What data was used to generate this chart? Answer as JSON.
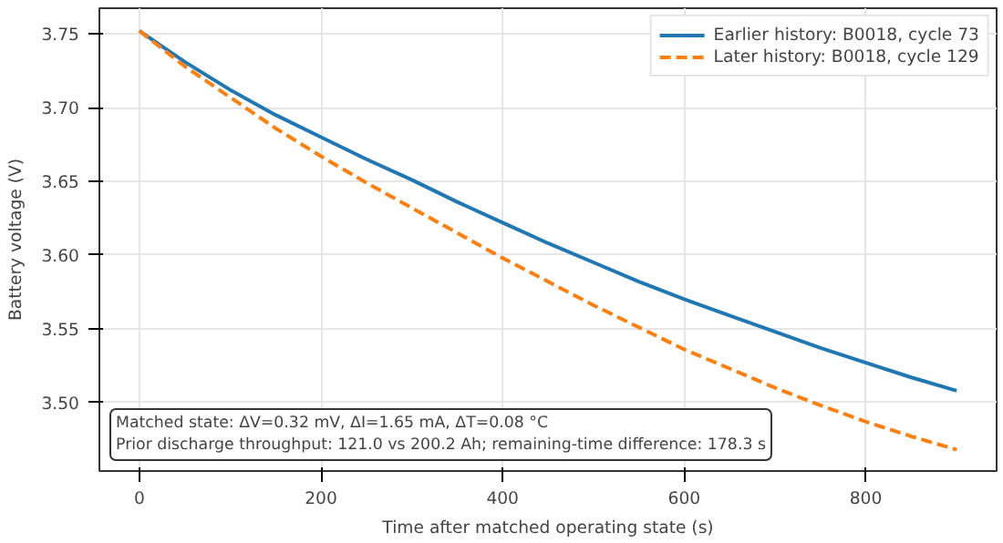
{
  "chart_data": {
    "type": "line",
    "xlabel": "Time after matched operating state (s)",
    "ylabel": "Battery voltage (V)",
    "x": [
      0,
      50,
      100,
      150,
      200,
      250,
      300,
      350,
      400,
      450,
      500,
      550,
      600,
      650,
      700,
      750,
      800,
      850,
      900
    ],
    "series": [
      {
        "name": "Earlier history: B0018, cycle 73",
        "color": "#1f77b4",
        "line_style": "solid",
        "values": [
          3.752,
          3.731,
          3.712,
          3.695,
          3.68,
          3.665,
          3.651,
          3.636,
          3.622,
          3.608,
          3.595,
          3.582,
          3.57,
          3.559,
          3.548,
          3.537,
          3.527,
          3.517,
          3.508
        ]
      },
      {
        "name": "Later history: B0018, cycle 129",
        "color": "#ff7f0e",
        "line_style": "dashed",
        "values": [
          3.752,
          3.728,
          3.707,
          3.686,
          3.667,
          3.649,
          3.632,
          3.615,
          3.598,
          3.582,
          3.566,
          3.551,
          3.536,
          3.523,
          3.51,
          3.498,
          3.487,
          3.477,
          3.468
        ]
      }
    ],
    "xlim": [
      -44,
      944
    ],
    "ylim": [
      3.4535,
      3.7674
    ],
    "xticks": [
      0,
      200,
      400,
      600,
      800
    ],
    "yticks": [
      {
        "value": 3.5,
        "label": "3.50"
      },
      {
        "value": 3.55,
        "label": "3.55"
      },
      {
        "value": 3.6,
        "label": "3.60"
      },
      {
        "value": 3.65,
        "label": "3.65"
      },
      {
        "value": 3.7,
        "label": "3.70"
      },
      {
        "value": 3.75,
        "label": "3.75"
      }
    ],
    "grid": true,
    "legend": "top right",
    "annotations": [
      "Matched state: ΔV=0.32 mV, ΔI=1.65 mA, ΔT=0.08 °C\nPrior discharge throughput: 121.0 vs 200.2 Ah; remaining-time difference: 178.3 s"
    ]
  }
}
